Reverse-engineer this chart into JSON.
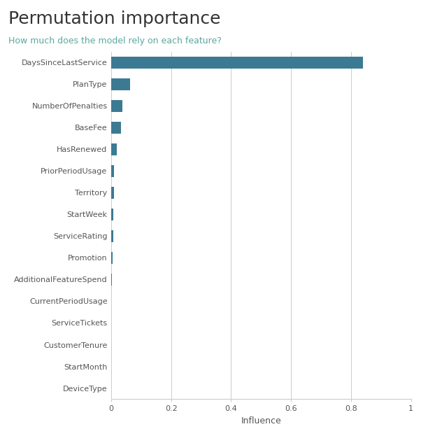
{
  "title": "Permutation importance",
  "subtitle": "How much does the model rely on each feature?",
  "xlabel": "Influence",
  "features": [
    "DaysSinceLastService",
    "PlanType",
    "NumberOfPenalties",
    "BaseFee",
    "HasRenewed",
    "PriorPeriodUsage",
    "Territory",
    "StartWeek",
    "ServiceRating",
    "Promotion",
    "AdditionalFeatureSpend",
    "CurrentPeriodUsage",
    "ServiceTickets",
    "CustomerTenure",
    "StartMonth",
    "DeviceType"
  ],
  "values": [
    0.84,
    0.062,
    0.038,
    0.033,
    0.018,
    0.01,
    0.008,
    0.007,
    0.006,
    0.004,
    0.002,
    0.0,
    0.0,
    0.0,
    0.0,
    0.0
  ],
  "bar_color": "#3c7a94",
  "title_color": "#333333",
  "subtitle_color": "#5ba8a0",
  "background_color": "#ffffff",
  "grid_color": "#cccccc",
  "axis_label_color": "#555555",
  "tick_label_color": "#555555",
  "xlim": [
    0,
    1.0
  ],
  "xticks": [
    0.0,
    0.2,
    0.4,
    0.6,
    0.8,
    1.0
  ],
  "xtick_labels": [
    "0",
    "0.2",
    "0.4",
    "0.6",
    "0.8",
    "1"
  ],
  "title_fontsize": 18,
  "subtitle_fontsize": 9,
  "tick_fontsize": 8,
  "xlabel_fontsize": 9,
  "bar_height": 0.55
}
